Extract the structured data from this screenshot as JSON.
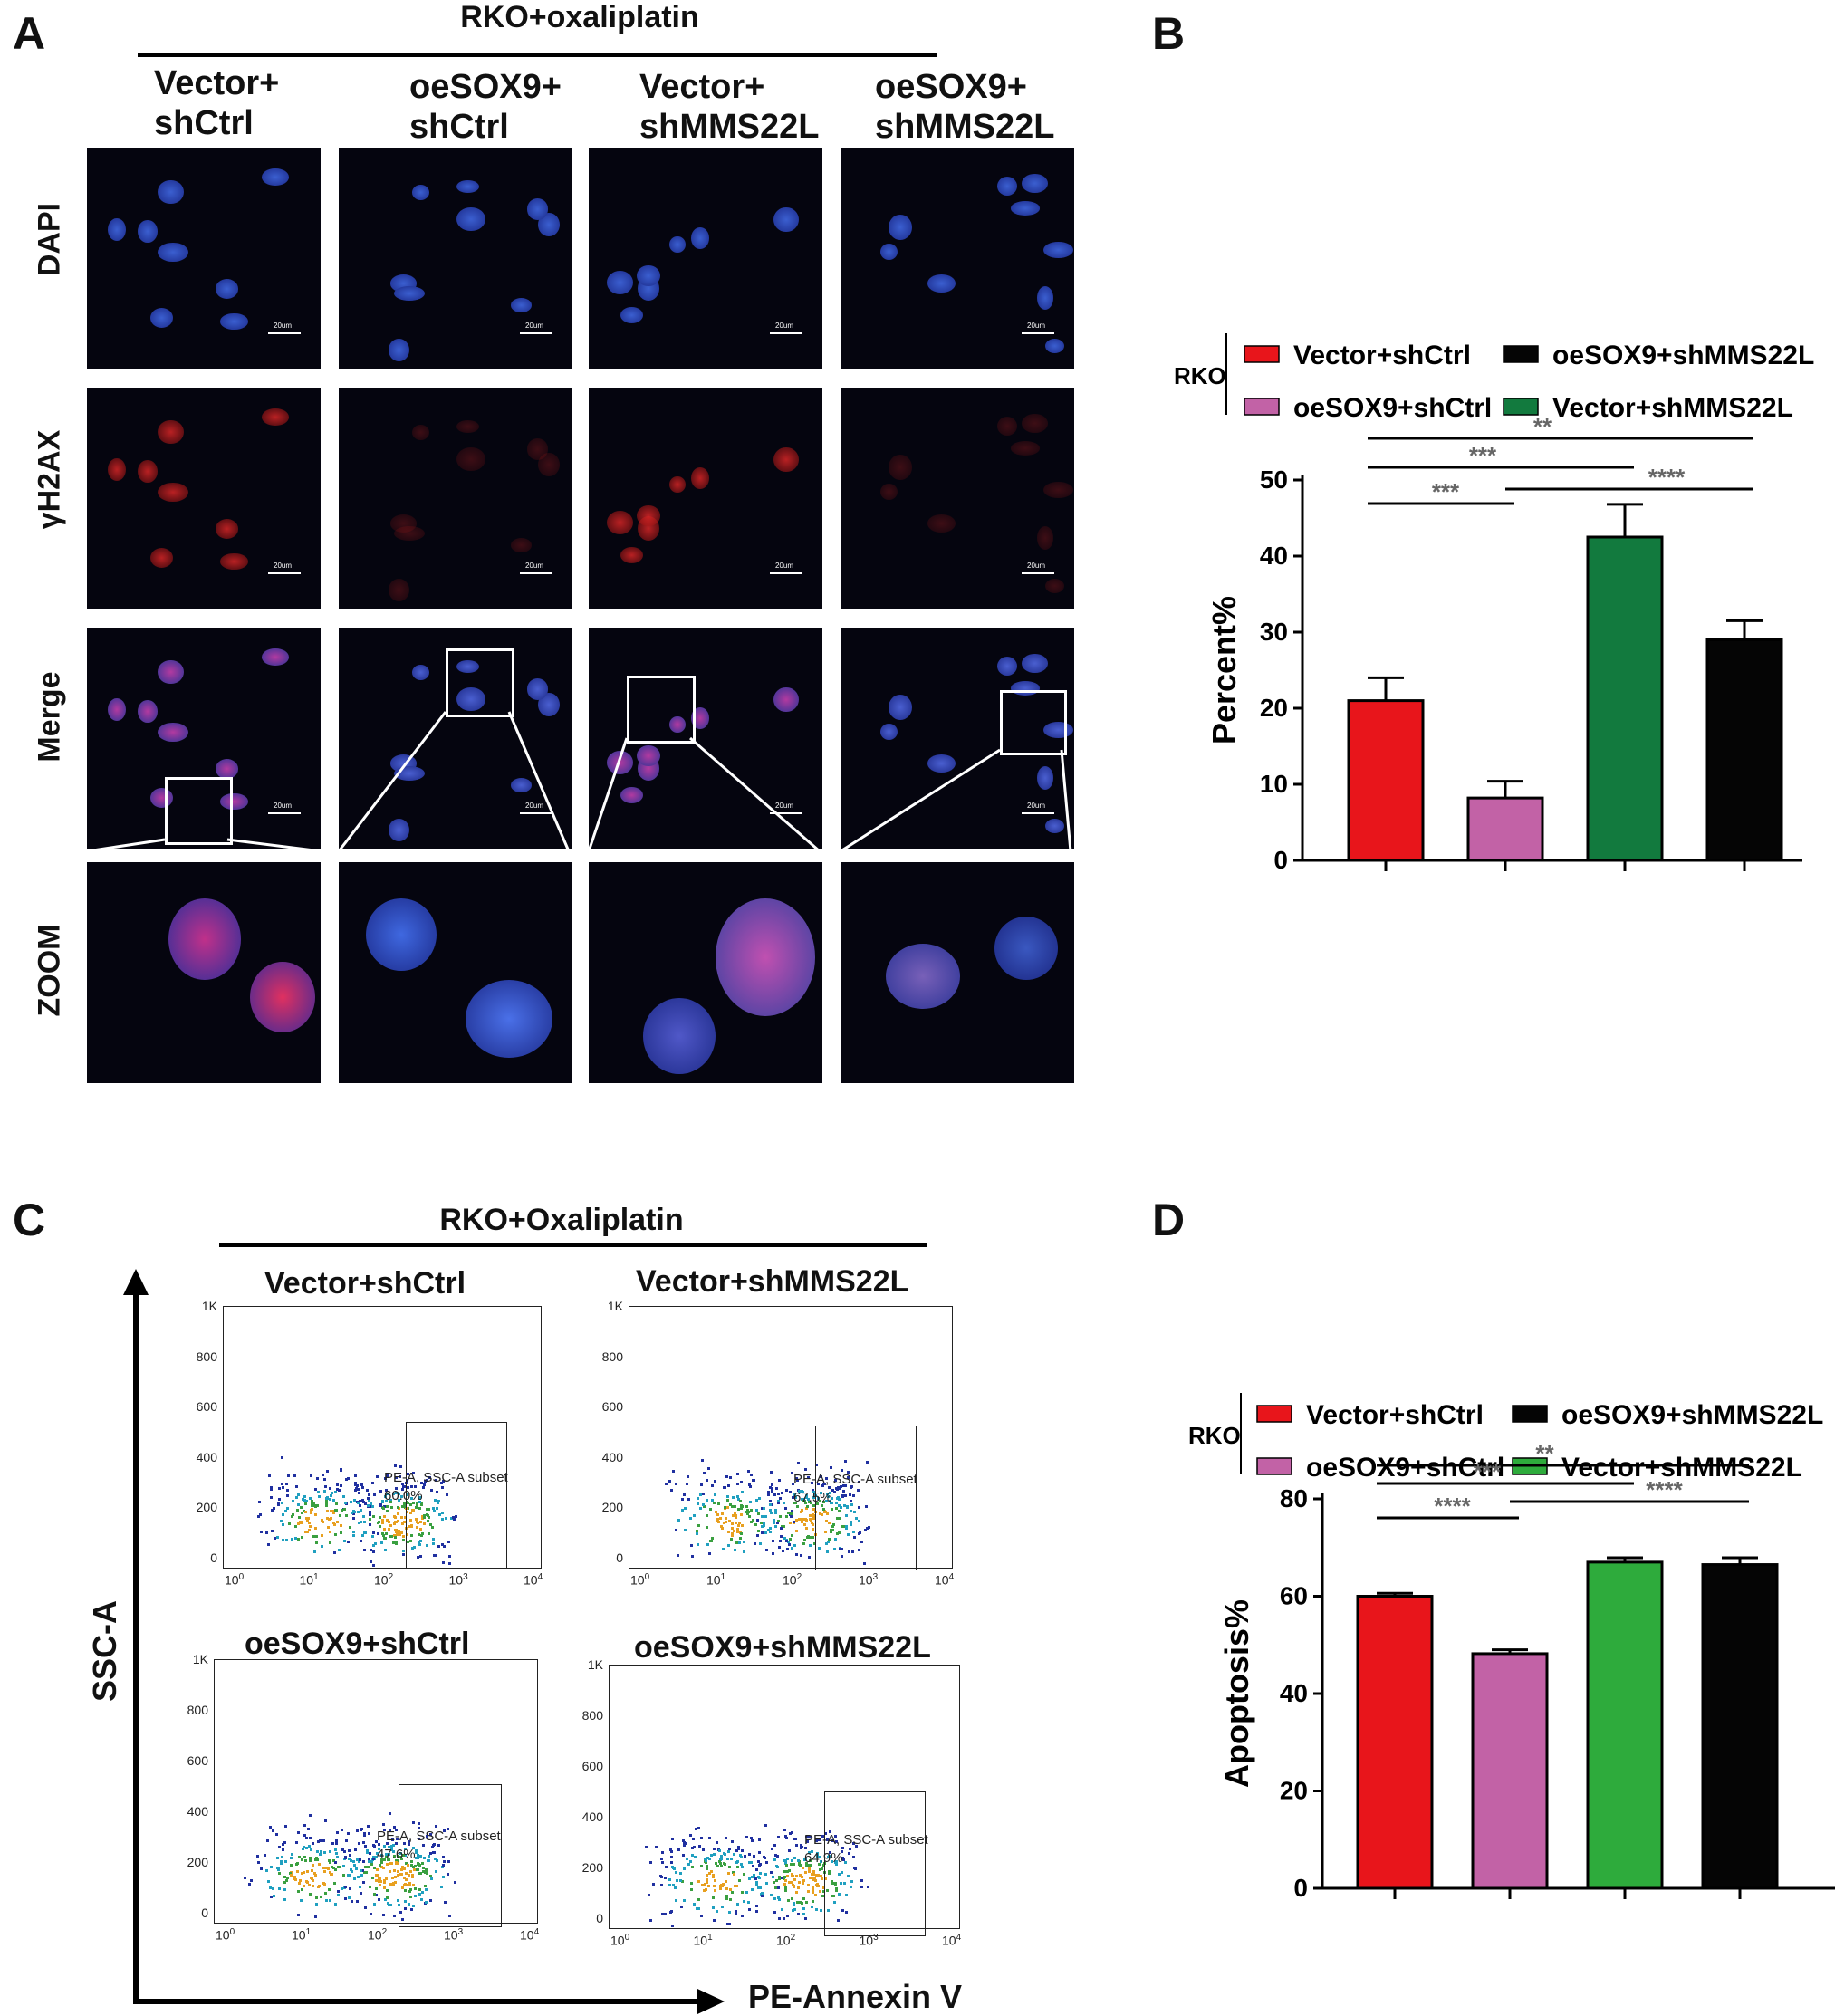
{
  "panels": {
    "a": "A",
    "b": "B",
    "c": "C",
    "d": "D"
  },
  "panelA": {
    "header": "RKO+oxaliplatin",
    "columns": [
      "Vector+\nshCtrl",
      "oeSOX9+\nshCtrl",
      "Vector+\nshMMS22L",
      "oeSOX9+\nshMMS22L"
    ],
    "rows": [
      "DAPI",
      "γH2AX",
      "Merge",
      "ZOOM"
    ],
    "scale_label": "20um"
  },
  "panelC": {
    "header": "RKO+Oxaliplatin",
    "y_axis": "SSC-A",
    "x_axis": "PE-Annexin V",
    "plots": [
      {
        "title": "Vector+shCtrl",
        "gate_label": "PE-A, SSC-A subset",
        "percent": "60.0%"
      },
      {
        "title": "Vector+shMMS22L",
        "gate_label": "PE-A, SSC-A subset",
        "percent": "67.5%"
      },
      {
        "title": "oeSOX9+shCtrl",
        "gate_label": "PE-A, SSC-A subset",
        "percent": "47.6%"
      },
      {
        "title": "oeSOX9+shMMS22L",
        "gate_label": "PE-A, SSC-A subset",
        "percent": "64.9%"
      }
    ],
    "y_ticks": [
      "1K",
      "800",
      "600",
      "400",
      "200",
      "0"
    ],
    "x_ticks": [
      "10",
      "10",
      "10",
      "10",
      "10"
    ],
    "x_tick_exp": [
      "0",
      "1",
      "2",
      "3",
      "4"
    ]
  },
  "chart_data": [
    {
      "type": "bar",
      "group_label": "RKO",
      "categories": [
        "Vector+shCtrl",
        "oeSOX9+shCtrl",
        "Vector+shMMS22L",
        "oeSOX9+shMMS22L"
      ],
      "values": [
        21,
        8.2,
        42.5,
        29
      ],
      "errors": [
        3,
        2.2,
        4.3,
        2.5
      ],
      "colors": [
        "#e8151b",
        "#c262a6",
        "#127a3e",
        "#050505"
      ],
      "ylabel": "Percent%",
      "ylim": [
        0,
        50
      ],
      "yticks": [
        0,
        10,
        20,
        30,
        40,
        50
      ],
      "legend_order": [
        0,
        3,
        1,
        2
      ],
      "significance": [
        {
          "from": 0,
          "to": 3,
          "label": "**"
        },
        {
          "from": 0,
          "to": 2,
          "label": "***"
        },
        {
          "from": 0,
          "to": 1,
          "label": "***"
        },
        {
          "from": 1,
          "to": 3,
          "label": "****"
        }
      ]
    },
    {
      "type": "bar",
      "group_label": "RKO",
      "categories": [
        "Vector+shCtrl",
        "oeSOX9+shCtrl",
        "Vector+shMMS22L",
        "oeSOX9+shMMS22L"
      ],
      "values": [
        60,
        48.2,
        67,
        66.5
      ],
      "errors": [
        0.6,
        0.8,
        0.9,
        1.4
      ],
      "colors": [
        "#e8151b",
        "#c262a6",
        "#2eab3c",
        "#050505"
      ],
      "ylabel": "Apoptosis%",
      "ylim": [
        0,
        80
      ],
      "yticks": [
        0,
        20,
        40,
        60,
        80
      ],
      "legend_order": [
        0,
        3,
        1,
        2
      ],
      "significance": [
        {
          "from": 0,
          "to": 3,
          "label": "**"
        },
        {
          "from": 0,
          "to": 2,
          "label": "***"
        },
        {
          "from": 0,
          "to": 1,
          "label": "****"
        },
        {
          "from": 1,
          "to": 3,
          "label": "****"
        }
      ]
    }
  ]
}
